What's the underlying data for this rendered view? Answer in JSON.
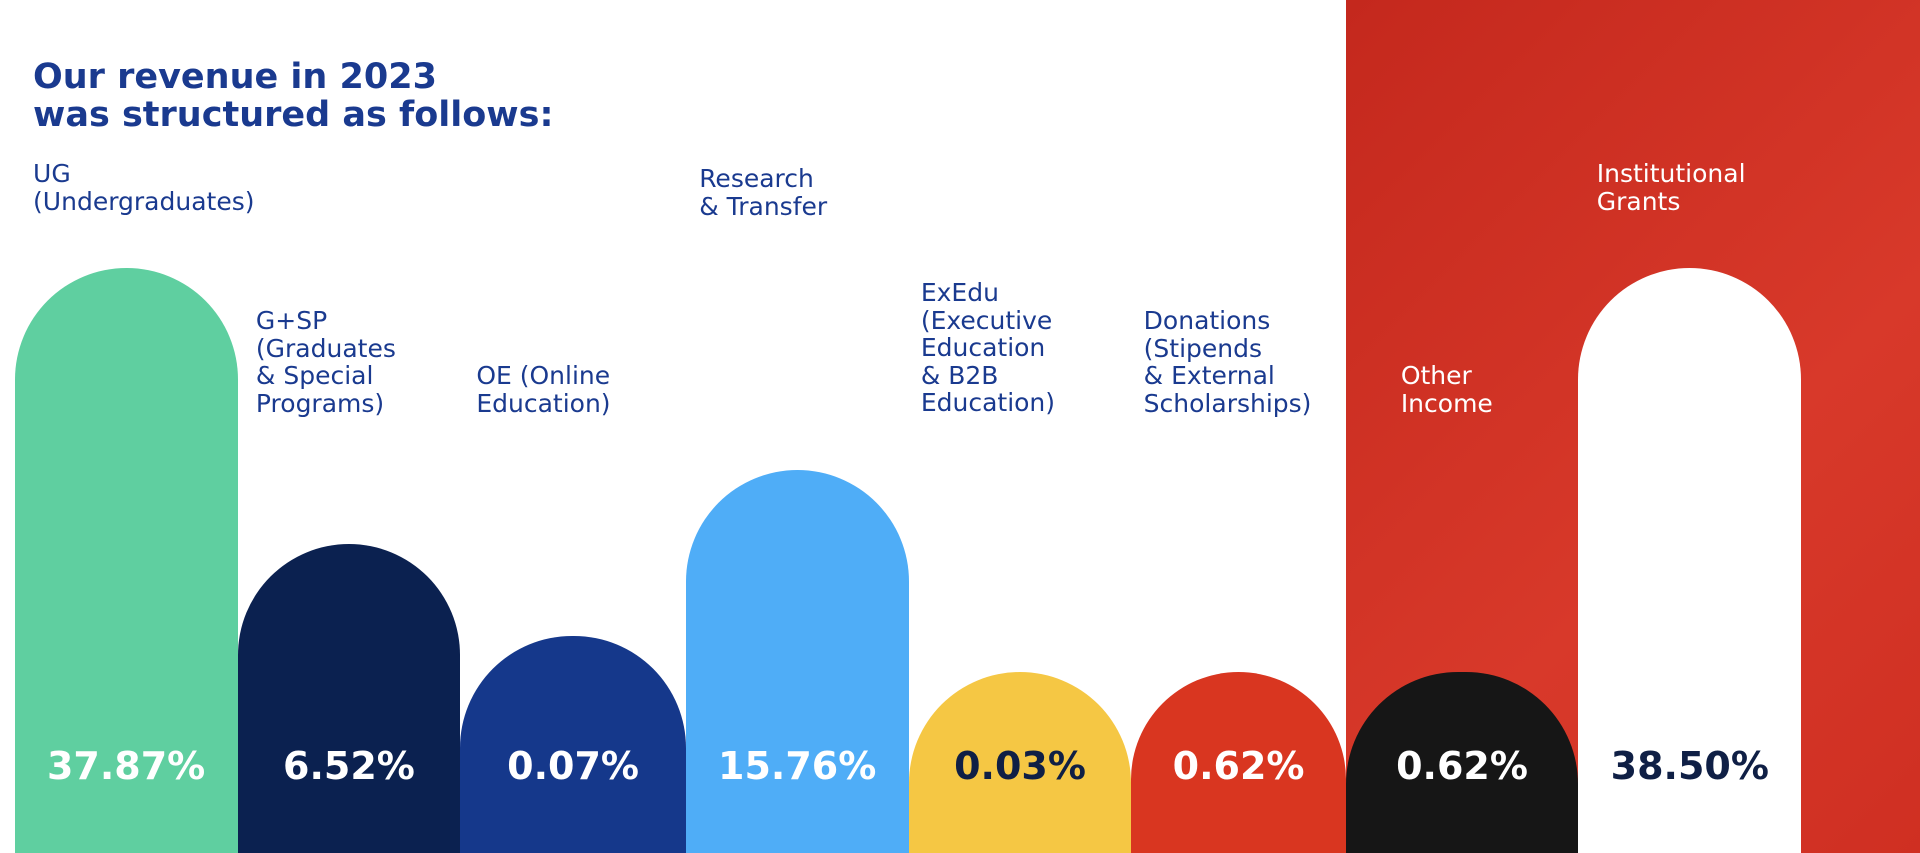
{
  "title": "Our revenue in 2023\nwas structured as follows:",
  "items": [
    {
      "label": "UG\n(Undergraduates)",
      "value": "37.87%"
    },
    {
      "label": "G+SP\n(Graduates\n& Special\nPrograms)",
      "value": "6.52%"
    },
    {
      "label": "OE (Online\nEducation)",
      "value": "0.07%"
    },
    {
      "label": "Research\n& Transfer",
      "value": "15.76%"
    },
    {
      "label": "ExEdu\n(Executive\nEducation\n& B2B\nEducation)",
      "value": "0.03%"
    },
    {
      "label": "Donations\n(Stipends\n& External\nScholarships)",
      "value": "0.62%"
    },
    {
      "label": "Other\nIncome",
      "value": "0.62%"
    },
    {
      "label": "Institutional\nGrants",
      "value": "38.50%"
    }
  ]
}
